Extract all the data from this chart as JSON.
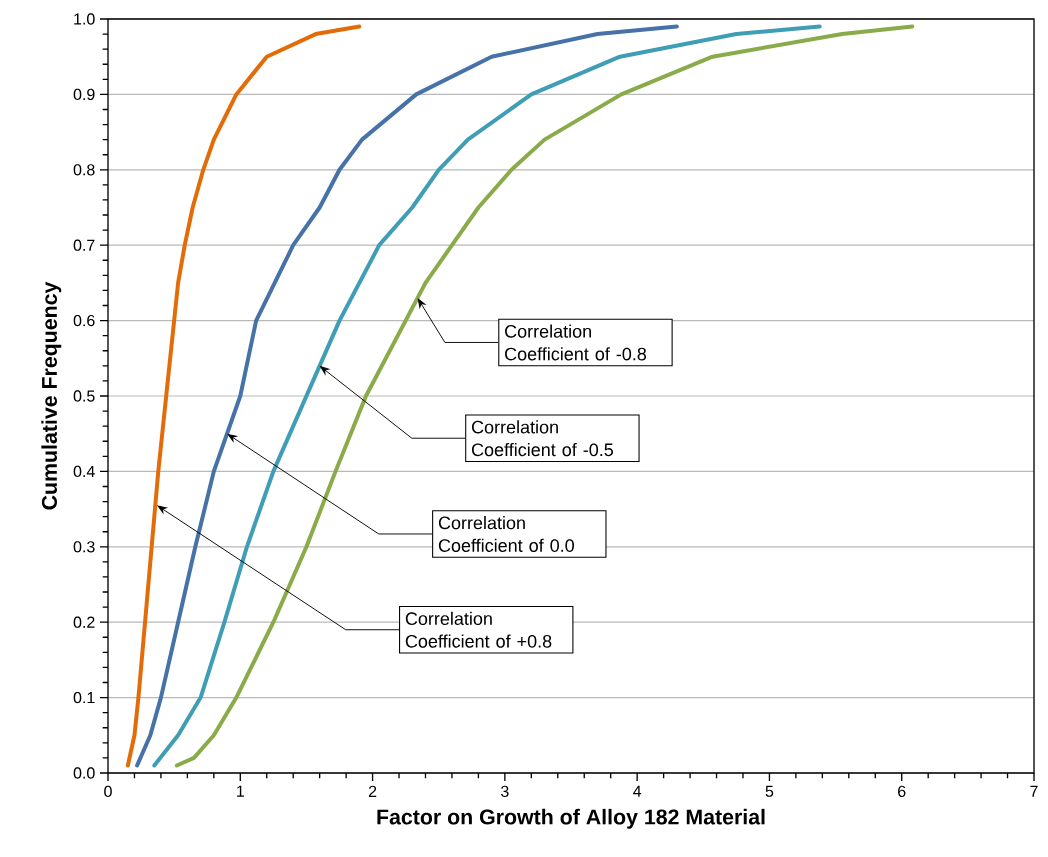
{
  "chart_data": {
    "type": "line",
    "xlabel": "Factor on Growth of Alloy 182 Material",
    "ylabel": "Cumulative Frequency",
    "xlim": [
      0,
      7
    ],
    "ylim": [
      0,
      1
    ],
    "xticks": [
      0,
      1,
      2,
      3,
      4,
      5,
      6,
      7
    ],
    "yticks": [
      {
        "value": 0,
        "label": "0.0"
      },
      {
        "value": 0.1,
        "label": "0.1"
      },
      {
        "value": 0.2,
        "label": "0.2"
      },
      {
        "value": 0.3,
        "label": "0.3"
      },
      {
        "value": 0.4,
        "label": "0.4"
      },
      {
        "value": 0.5,
        "label": "0.5"
      },
      {
        "value": 0.6,
        "label": "0.6"
      },
      {
        "value": 0.7,
        "label": "0.7"
      },
      {
        "value": 0.8,
        "label": "0.8"
      },
      {
        "value": 0.9,
        "label": "0.9"
      },
      {
        "value": 1,
        "label": "1.0"
      }
    ],
    "grid": "y",
    "legend": false,
    "marker": "none",
    "line_style": "solid",
    "series": [
      {
        "color": "#e36c09",
        "x": [
          0.15,
          0.2,
          0.23,
          0.28,
          0.33,
          0.38,
          0.44,
          0.5,
          0.53,
          0.58,
          0.64,
          0.72,
          0.8,
          0.97,
          1.2,
          1.57,
          1.9
        ],
        "values": [
          0.01,
          0.05,
          0.1,
          0.2,
          0.3,
          0.4,
          0.5,
          0.6,
          0.65,
          0.7,
          0.75,
          0.8,
          0.84,
          0.9,
          0.95,
          0.98,
          0.99
        ]
      },
      {
        "color": "#4672a8",
        "x": [
          0.22,
          0.32,
          0.4,
          0.53,
          0.66,
          0.8,
          1.0,
          1.12,
          1.4,
          1.6,
          1.75,
          1.92,
          2.33,
          2.9,
          3.7,
          4.3
        ],
        "values": [
          0.01,
          0.05,
          0.1,
          0.2,
          0.3,
          0.4,
          0.5,
          0.6,
          0.7,
          0.75,
          0.8,
          0.84,
          0.9,
          0.95,
          0.98,
          0.99
        ]
      },
      {
        "color": "#3f9db5",
        "x": [
          0.35,
          0.53,
          0.7,
          0.88,
          1.05,
          1.25,
          1.5,
          1.75,
          2.05,
          2.3,
          2.5,
          2.72,
          3.2,
          3.87,
          4.75,
          5.38
        ],
        "values": [
          0.01,
          0.05,
          0.1,
          0.2,
          0.3,
          0.4,
          0.5,
          0.6,
          0.7,
          0.75,
          0.8,
          0.84,
          0.9,
          0.95,
          0.98,
          0.99
        ]
      },
      {
        "color": "#8aab4a",
        "x": [
          0.52,
          0.65,
          0.8,
          0.97,
          1.25,
          1.5,
          1.72,
          1.95,
          2.25,
          2.4,
          2.6,
          2.8,
          3.05,
          3.3,
          3.88,
          4.57,
          5.55,
          6.08
        ],
        "values": [
          0.01,
          0.02,
          0.05,
          0.1,
          0.2,
          0.3,
          0.4,
          0.5,
          0.6,
          0.65,
          0.7,
          0.75,
          0.8,
          0.84,
          0.9,
          0.95,
          0.98,
          0.99
        ]
      }
    ],
    "annotations": [
      {
        "text": "Correlation Coefficient of +0.8",
        "x": 0.37,
        "y": 0.355
      },
      {
        "text": "Correlation Coefficient of 0.0",
        "x": 0.9,
        "y": 0.45
      },
      {
        "text": "Correlation Coefficient of -0.5",
        "x": 1.6,
        "y": 0.54
      },
      {
        "text": "Correlation Coefficient of -0.8",
        "x": 2.34,
        "y": 0.63
      }
    ]
  }
}
